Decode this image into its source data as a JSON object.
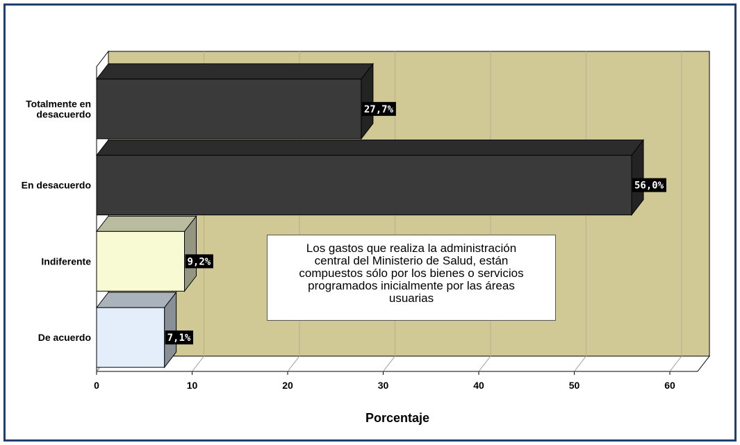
{
  "chart_data": {
    "type": "bar",
    "orientation": "horizontal",
    "categories": [
      "Totalmente en desacuerdo",
      "En desacuerdo",
      "Indiferente",
      "De acuerdo"
    ],
    "values": [
      27.7,
      56.0,
      9.2,
      7.1
    ],
    "data_labels": [
      "27,7%",
      "56,0%",
      "9,2%",
      "7,1%"
    ],
    "bar_colors": [
      "#3a3a3a",
      "#3a3a3a",
      "#f8fad4",
      "#e3eefa"
    ],
    "xlabel": "Porcentaje",
    "ylabel": "",
    "xlim": [
      0,
      63
    ],
    "xticks": [
      0,
      10,
      20,
      30,
      40,
      50,
      60
    ],
    "grid": true,
    "plot_background": "#d1c995",
    "annotation": [
      "Los gastos que realiza la administración",
      "central del Ministerio de Salud, están",
      "compuestos sólo por los bienes o servicios",
      "programados inicialmente por las áreas",
      "usuarias"
    ]
  }
}
